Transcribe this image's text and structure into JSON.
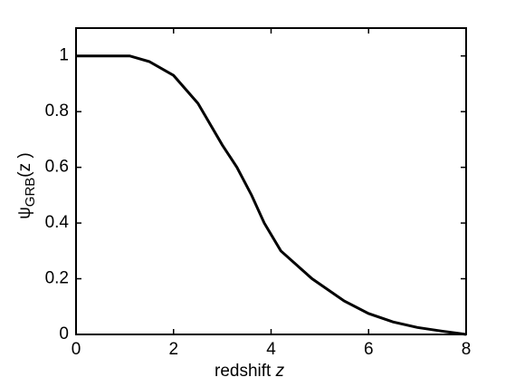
{
  "chart_data": {
    "type": "line",
    "xlabel": {
      "text": "redshift",
      "variable": "z"
    },
    "ylabel": {
      "symbol": "ψ",
      "subscript": "GRB",
      "argument": "(z )"
    },
    "x": [
      0,
      1.1,
      1.5,
      2,
      2.5,
      3,
      3.3,
      3.6,
      3.86,
      4.2,
      4.84,
      5.5,
      6,
      6.5,
      7,
      7.5,
      8
    ],
    "series": [
      {
        "color": "#000000",
        "values": [
          1,
          1,
          0.98,
          0.93,
          0.83,
          0.68,
          0.6,
          0.5,
          0.4,
          0.3,
          0.2,
          0.12,
          0.075,
          0.045,
          0.025,
          0.012,
          0
        ]
      }
    ],
    "xlim": [
      0,
      8
    ],
    "ylim": [
      0,
      1.1
    ],
    "xticks": [
      0,
      2,
      4,
      6,
      8
    ],
    "yticks": [
      0,
      0.2,
      0.4,
      0.6,
      0.8,
      1
    ],
    "grid": false
  }
}
